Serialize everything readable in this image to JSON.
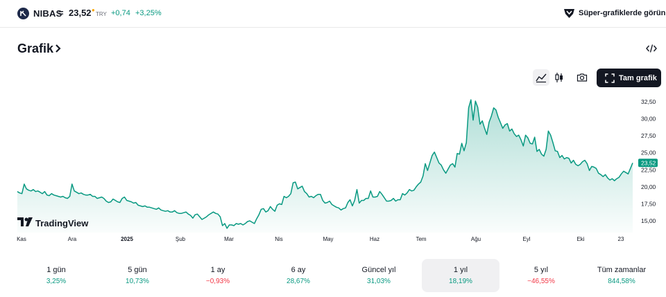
{
  "header": {
    "symbol": "NIBAS",
    "separator": "=",
    "price": "23,52",
    "currency": "TRY",
    "change": "+0,74",
    "change_percent": "+3,25%",
    "super_charts_label": "Süper-grafiklerde görün"
  },
  "section": {
    "title": "Grafik"
  },
  "toolbar": {
    "full_chart_label": "Tam grafik",
    "active_style": "area"
  },
  "chart_data": {
    "type": "area",
    "title": "",
    "xlabel": "",
    "ylabel": "",
    "ylim": [
      13.5,
      33.5
    ],
    "y_ticks": [
      "32,50",
      "30,00",
      "27,50",
      "25,00",
      "22,50",
      "20,00",
      "17,50",
      "15,00"
    ],
    "y_tick_values": [
      32.5,
      30,
      27.5,
      25,
      22.5,
      20,
      17.5,
      15
    ],
    "x_ticks": [
      "Kas",
      "Ara",
      "2025",
      "Şub",
      "Mar",
      "Nis",
      "May",
      "Haz",
      "Tem",
      "Ağu",
      "Eyl",
      "Eki",
      "23"
    ],
    "last_value_label": "23,52",
    "last_value": 23.52,
    "line_color": "#089981",
    "x_start": "2024-10-23",
    "x_end": "2025-10-23",
    "series": [
      {
        "values": [
          19.3,
          19.1,
          19.0,
          20.4,
          19.7,
          19.5,
          19.4,
          19.6,
          19.3,
          19.4,
          19.2,
          19.0,
          19.3,
          18.8,
          18.7,
          19.0,
          18.8,
          18.7,
          18.6,
          18.5,
          18.6,
          18.4,
          18.3,
          18.6,
          20.4,
          19.4,
          19.2,
          19.0,
          19.1,
          18.9,
          18.8,
          18.8,
          18.9,
          18.6,
          18.6,
          18.3,
          18.4,
          18.5,
          18.3,
          17.9,
          17.7,
          17.8,
          18.2,
          18.0,
          17.8,
          17.7,
          18.3,
          18.5,
          18.0,
          17.9,
          17.8,
          17.6,
          17.7,
          17.3,
          17.2,
          17.1,
          17.2,
          17.0,
          17.0,
          16.9,
          16.8,
          16.7,
          16.9,
          16.6,
          16.5,
          16.4,
          16.5,
          16.3,
          16.3,
          16.5,
          16.2,
          16.1,
          16.1,
          16.2,
          16.3,
          16.0,
          15.8,
          15.4,
          15.9,
          16.0,
          15.6,
          15.2,
          15.4,
          15.6,
          15.9,
          16.1,
          16.3,
          16.1,
          16.0,
          15.6,
          14.3,
          14.6,
          13.9,
          14.4,
          14.4,
          14.3,
          14.6,
          14.5,
          14.6,
          14.4,
          14.6,
          14.9,
          15.0,
          14.8,
          14.6,
          15.3,
          15.9,
          16.7,
          16.8,
          16.3,
          16.5,
          17.1,
          16.7,
          16.4,
          17.3,
          17.5,
          17.4,
          18.6,
          18.4,
          18.6,
          19.0,
          20.6,
          20.7,
          19.7,
          19.9,
          20.1,
          19.3,
          19.0,
          18.5,
          18.6,
          18.4,
          18.7,
          18.9,
          18.9,
          18.0,
          17.6,
          17.7,
          17.9,
          17.4,
          17.2,
          17.0,
          16.9,
          16.6,
          16.8,
          16.9,
          17.7,
          18.1,
          17.2,
          18.0,
          19.6,
          17.6,
          18.0,
          18.0,
          18.3,
          18.3,
          19.4,
          18.5,
          18.5,
          18.6,
          19.3,
          18.9,
          18.4,
          17.9,
          17.9,
          18.0,
          18.3,
          17.9,
          18.1,
          18.1,
          19.0,
          18.8,
          19.1,
          19.6,
          19.4,
          19.5,
          20.0,
          20.4,
          20.7,
          21.6,
          23.4,
          22.4,
          23.5,
          24.6,
          25.1,
          24.3,
          23.5,
          23.2,
          22.5,
          22.0,
          22.6,
          23.2,
          23.4,
          22.9,
          24.9,
          24.8,
          26.4,
          25.3,
          26.5,
          31.6,
          32.8,
          29.8,
          32.6,
          31.7,
          29.2,
          29.7,
          28.6,
          27.7,
          29.5,
          30.4,
          31.6,
          31.3,
          30.2,
          29.4,
          28.6,
          29.1,
          29.3,
          28.2,
          28.5,
          27.8,
          27.4,
          27.6,
          26.9,
          26.0,
          27.6,
          27.2,
          26.4,
          26.3,
          27.3,
          25.2,
          25.5,
          24.8,
          24.5,
          25.5,
          28.2,
          27.6,
          26.5,
          25.3,
          25.2,
          24.3,
          24.6,
          24.1,
          24.3,
          24.2,
          23.5,
          23.9,
          23.3,
          23.1,
          23.3,
          23.7,
          23.9,
          23.4,
          22.4,
          23.0,
          22.9,
          22.7,
          22.0,
          21.8,
          21.5,
          21.8,
          21.3,
          21.0,
          21.2,
          20.9,
          21.2,
          21.4,
          21.9,
          22.3,
          22.1,
          21.9,
          22.7,
          23.52
        ]
      }
    ]
  },
  "watermark": {
    "label": "TradingView"
  },
  "periods": [
    {
      "label": "1 gün",
      "value": "3,25%",
      "sign": "pos"
    },
    {
      "label": "5 gün",
      "value": "10,73%",
      "sign": "pos"
    },
    {
      "label": "1 ay",
      "value": "−0,93%",
      "sign": "neg"
    },
    {
      "label": "6 ay",
      "value": "28,67%",
      "sign": "pos"
    },
    {
      "label": "Güncel yıl",
      "value": "31,03%",
      "sign": "pos"
    },
    {
      "label": "1 yıl",
      "value": "18,19%",
      "sign": "pos",
      "active": true
    },
    {
      "label": "5 yıl",
      "value": "−46,55%",
      "sign": "neg"
    },
    {
      "label": "Tüm zamanlar",
      "value": "844,58%",
      "sign": "pos"
    }
  ],
  "colors": {
    "positive": "#089981",
    "negative": "#f23645",
    "dark": "#131722"
  },
  "icons": [
    "company-logo-icon",
    "super-charts-icon",
    "chevron-right-icon",
    "embed-code-icon",
    "area-chart-icon",
    "candles-icon",
    "camera-icon",
    "fullscreen-icon",
    "tradingview-logo-icon"
  ]
}
